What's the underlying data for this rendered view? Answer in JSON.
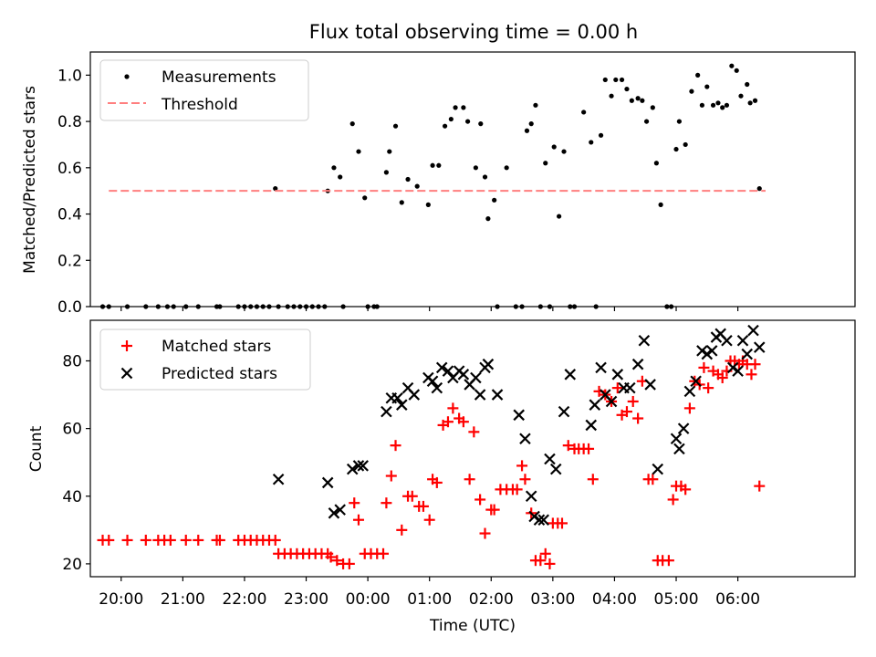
{
  "title": "Flux total observing time = 0.00 h",
  "chart_data": [
    {
      "type": "scatter",
      "ylabel": "Matched/Predicted stars",
      "xlabel": "",
      "xlim": [
        19.5,
        7.9
      ],
      "ylim": [
        0.0,
        1.1
      ],
      "yticks": [
        0.0,
        0.2,
        0.4,
        0.6,
        0.8,
        1.0
      ],
      "yticklabels": [
        "0.0",
        "0.2",
        "0.4",
        "0.6",
        "0.8",
        "1.0"
      ],
      "legend_position": "top-left",
      "threshold": {
        "name": "Threshold",
        "value": 0.5,
        "x_range": [
          19.8,
          6.45
        ],
        "color": "#ff7f7f",
        "style": "dashed"
      },
      "series": [
        {
          "name": "Measurements",
          "color": "#000000",
          "marker": "dot",
          "x": [
            19.7,
            19.8,
            20.1,
            20.4,
            20.6,
            20.75,
            20.85,
            21.05,
            21.25,
            21.55,
            21.6,
            21.9,
            22.0,
            22.1,
            22.2,
            22.3,
            22.4,
            22.5,
            22.55,
            22.7,
            22.8,
            22.9,
            23.0,
            23.1,
            23.2,
            23.3,
            23.35,
            23.45,
            23.55,
            23.6,
            23.75,
            23.85,
            23.95,
            0.0,
            0.1,
            0.15,
            0.3,
            0.35,
            0.45,
            0.55,
            0.65,
            0.8,
            0.98,
            1.05,
            1.15,
            1.25,
            1.35,
            1.42,
            1.55,
            1.62,
            1.75,
            1.83,
            1.9,
            1.95,
            2.05,
            2.1,
            2.25,
            2.4,
            2.5,
            2.58,
            2.65,
            2.72,
            2.8,
            2.88,
            2.95,
            3.02,
            3.1,
            3.18,
            3.28,
            3.35,
            3.5,
            3.62,
            3.7,
            3.78,
            3.85,
            3.95,
            4.02,
            4.12,
            4.2,
            4.28,
            4.38,
            4.45,
            4.52,
            4.62,
            4.68,
            4.75,
            4.85,
            4.92,
            5.0,
            5.05,
            5.15,
            5.25,
            5.35,
            5.42,
            5.5,
            5.6,
            5.68,
            5.75,
            5.82,
            5.9,
            5.98,
            6.05,
            6.15,
            6.2,
            6.28,
            6.35
          ],
          "y": [
            0.0,
            0.0,
            0.0,
            0.0,
            0.0,
            0.0,
            0.0,
            0.0,
            0.0,
            0.0,
            0.0,
            0.0,
            0.0,
            0.0,
            0.0,
            0.0,
            0.0,
            0.51,
            0.0,
            0.0,
            0.0,
            0.0,
            0.0,
            0.0,
            0.0,
            0.0,
            0.5,
            0.6,
            0.56,
            0.0,
            0.79,
            0.67,
            0.47,
            0.0,
            0.0,
            0.0,
            0.58,
            0.67,
            0.78,
            0.45,
            0.55,
            0.52,
            0.44,
            0.61,
            0.61,
            0.78,
            0.81,
            0.86,
            0.86,
            0.8,
            0.6,
            0.79,
            0.56,
            0.38,
            0.46,
            0.0,
            0.6,
            0.0,
            0.0,
            0.76,
            0.79,
            0.87,
            0.0,
            0.62,
            0.0,
            0.69,
            0.39,
            0.67,
            0.0,
            0.0,
            0.84,
            0.71,
            0.0,
            0.74,
            0.98,
            0.91,
            0.98,
            0.98,
            0.94,
            0.89,
            0.9,
            0.89,
            0.8,
            0.86,
            0.62,
            0.44,
            0.0,
            0.0,
            0.68,
            0.8,
            0.7,
            0.93,
            1.0,
            0.87,
            0.95,
            0.87,
            0.88,
            0.86,
            0.87,
            1.04,
            1.02,
            0.91,
            0.96,
            0.88,
            0.89,
            0.51
          ]
        }
      ]
    },
    {
      "type": "scatter",
      "xlabel": "Time (UTC)",
      "ylabel": "Count",
      "xlim": [
        19.5,
        7.9
      ],
      "ylim": [
        16.2,
        92.0
      ],
      "xticks": [
        20,
        21,
        22,
        23,
        0,
        1,
        2,
        3,
        4,
        5,
        6
      ],
      "xticklabels": [
        "20:00",
        "21:00",
        "22:00",
        "23:00",
        "00:00",
        "01:00",
        "02:00",
        "03:00",
        "04:00",
        "05:00",
        "06:00"
      ],
      "yticks": [
        20,
        40,
        60,
        80
      ],
      "yticklabels": [
        "20",
        "40",
        "60",
        "80"
      ],
      "legend_position": "top-left",
      "series": [
        {
          "name": "Matched stars",
          "color": "#ff0000",
          "marker": "plus",
          "x": [
            19.7,
            19.8,
            20.1,
            20.4,
            20.6,
            20.7,
            20.8,
            21.05,
            21.25,
            21.55,
            21.6,
            21.9,
            22.0,
            22.1,
            22.2,
            22.3,
            22.4,
            22.5,
            22.55,
            22.65,
            22.75,
            22.85,
            22.95,
            23.05,
            23.15,
            23.25,
            23.35,
            23.4,
            23.5,
            23.6,
            23.7,
            23.78,
            23.85,
            23.95,
            0.05,
            0.15,
            0.25,
            0.3,
            0.38,
            0.45,
            0.55,
            0.65,
            0.72,
            0.83,
            0.9,
            1.0,
            1.05,
            1.12,
            1.22,
            1.3,
            1.38,
            1.48,
            1.55,
            1.65,
            1.72,
            1.82,
            1.9,
            2.0,
            2.05,
            2.15,
            2.25,
            2.35,
            2.42,
            2.5,
            2.55,
            2.65,
            2.72,
            2.8,
            2.88,
            2.95,
            3.0,
            3.08,
            3.15,
            3.25,
            3.35,
            3.42,
            3.5,
            3.58,
            3.65,
            3.75,
            3.85,
            3.95,
            4.05,
            4.12,
            4.2,
            4.3,
            4.38,
            4.45,
            4.55,
            4.62,
            4.7,
            4.78,
            4.88,
            4.95,
            5.0,
            5.08,
            5.15,
            5.22,
            5.3,
            5.38,
            5.45,
            5.52,
            5.6,
            5.68,
            5.75,
            5.82,
            5.88,
            5.95,
            6.02,
            6.08,
            6.15,
            6.22,
            6.28,
            6.35
          ],
          "y": [
            27,
            27,
            27,
            27,
            27,
            27,
            27,
            27,
            27,
            27,
            27,
            27,
            27,
            27,
            27,
            27,
            27,
            27,
            23,
            23,
            23,
            23,
            23,
            23,
            23,
            23,
            23,
            22,
            21,
            20,
            20,
            38,
            33,
            23,
            23,
            23,
            23,
            38,
            46,
            55,
            30,
            40,
            40,
            37,
            37,
            33,
            45,
            44,
            61,
            62,
            66,
            63,
            62,
            45,
            59,
            39,
            29,
            36,
            36,
            42,
            42,
            42,
            42,
            49,
            45,
            35,
            21,
            21,
            23,
            20,
            32,
            32,
            32,
            55,
            54,
            54,
            54,
            54,
            45,
            71,
            70,
            68,
            72,
            64,
            65,
            68,
            63,
            74,
            45,
            45,
            21,
            21,
            21,
            39,
            43,
            43,
            42,
            66,
            74,
            73,
            78,
            72,
            77,
            76,
            75,
            77,
            80,
            80,
            79,
            80,
            79,
            76,
            79,
            43
          ]
        },
        {
          "name": "Predicted stars",
          "color": "#000000",
          "marker": "x",
          "x": [
            22.55,
            23.35,
            23.45,
            23.55,
            23.75,
            23.85,
            23.92,
            0.3,
            0.38,
            0.48,
            0.55,
            0.65,
            0.75,
            0.98,
            1.05,
            1.12,
            1.2,
            1.3,
            1.38,
            1.48,
            1.55,
            1.65,
            1.75,
            1.82,
            1.9,
            1.95,
            2.1,
            2.45,
            2.55,
            2.65,
            2.7,
            2.78,
            2.85,
            2.95,
            3.05,
            3.18,
            3.28,
            3.62,
            3.68,
            3.78,
            3.85,
            3.95,
            4.05,
            4.15,
            4.25,
            4.38,
            4.48,
            4.58,
            4.7,
            5.0,
            5.05,
            5.12,
            5.22,
            5.32,
            5.42,
            5.5,
            5.58,
            5.65,
            5.72,
            5.82,
            5.92,
            6.0,
            6.08,
            6.15,
            6.25,
            6.35
          ],
          "y": [
            45,
            44,
            35,
            36,
            48,
            49,
            49,
            65,
            69,
            69,
            67,
            72,
            70,
            75,
            74,
            72,
            78,
            77,
            75,
            77,
            76,
            73,
            75,
            70,
            78,
            79,
            70,
            64,
            57,
            40,
            34,
            33,
            33,
            51,
            48,
            65,
            76,
            61,
            67,
            78,
            70,
            68,
            76,
            72,
            72,
            79,
            86,
            73,
            48,
            57,
            54,
            60,
            71,
            74,
            83,
            82,
            83,
            87,
            88,
            86,
            78,
            77,
            86,
            82,
            89,
            84
          ]
        }
      ]
    }
  ]
}
